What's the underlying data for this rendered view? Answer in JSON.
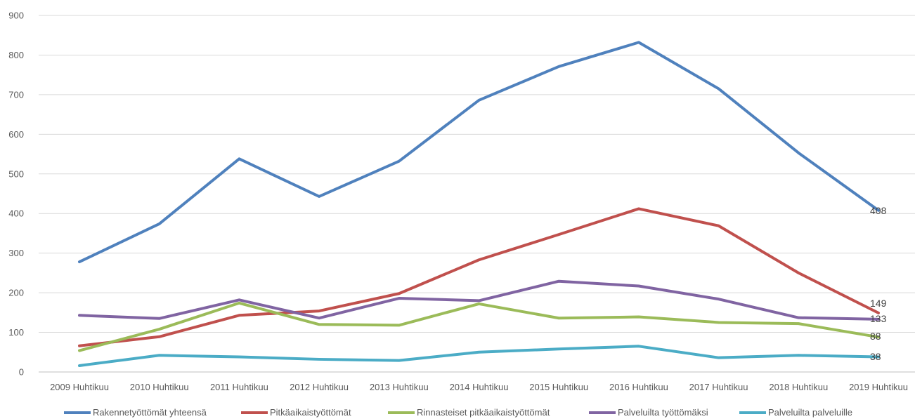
{
  "chart_data": {
    "type": "line",
    "title": "",
    "xlabel": "",
    "ylabel": "",
    "ylim": [
      0,
      900
    ],
    "yticks": [
      0,
      100,
      200,
      300,
      400,
      500,
      600,
      700,
      800,
      900
    ],
    "grid": true,
    "legend_position": "bottom",
    "categories": [
      "2009 Huhtikuu",
      "2010 Huhtikuu",
      "2011 Huhtikuu",
      "2012 Huhtikuu",
      "2013 Huhtikuu",
      "2014 Huhtikuu",
      "2015 Huhtikuu",
      "2016 Huhtikuu",
      "2017 Huhtikuu",
      "2018 Huhtikuu",
      "2019 Huhtikuu"
    ],
    "series": [
      {
        "name": "Rakennetyöttömät yhteensä",
        "color": "#4f81bd",
        "values": [
          278,
          374,
          538,
          443,
          532,
          686,
          771,
          832,
          715,
          553,
          408
        ],
        "end_label": "408"
      },
      {
        "name": "Pitkäaikaistyöttömät",
        "color": "#c0504d",
        "values": [
          66,
          89,
          143,
          154,
          198,
          283,
          347,
          412,
          369,
          250,
          149
        ],
        "end_label": "149"
      },
      {
        "name": "Rinnasteiset pitkäaikaistyöttömät",
        "color": "#9bbb59",
        "values": [
          54,
          108,
          174,
          120,
          118,
          172,
          136,
          139,
          125,
          122,
          88
        ],
        "end_label": "88"
      },
      {
        "name": "Palveluilta työttömäksi",
        "color": "#8064a2",
        "values": [
          143,
          135,
          182,
          136,
          186,
          180,
          229,
          217,
          184,
          137,
          133
        ],
        "end_label": "133"
      },
      {
        "name": "Palveluilta palveluille",
        "color": "#4bacc6",
        "values": [
          16,
          42,
          38,
          32,
          29,
          50,
          58,
          65,
          36,
          42,
          38
        ],
        "end_label": "38"
      }
    ]
  }
}
